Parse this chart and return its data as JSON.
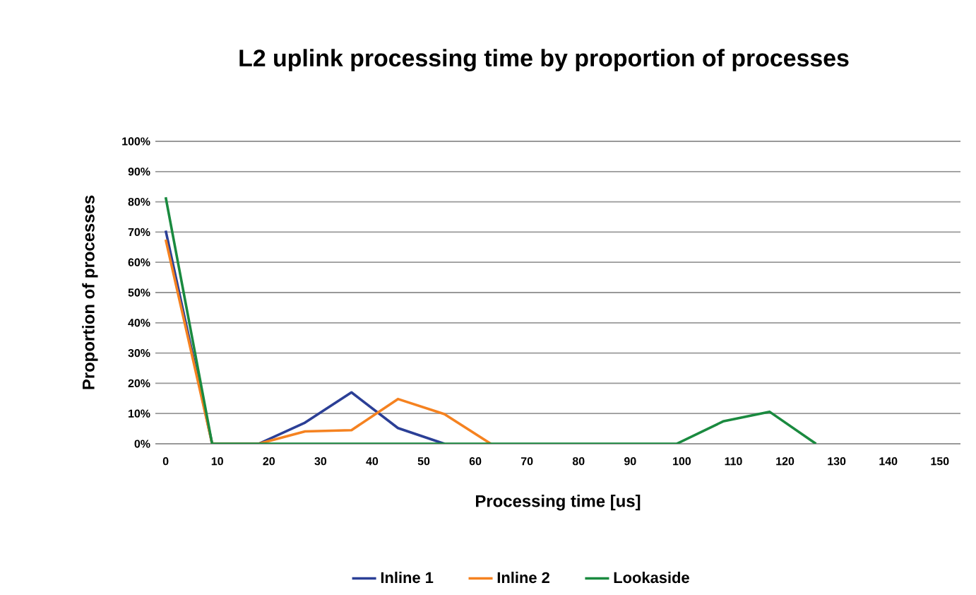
{
  "chart_data": {
    "type": "line",
    "title": "L2 uplink processing time by proportion of processes",
    "xlabel": "Processing time [us]",
    "ylabel": "Proportion of processes",
    "xlim": [
      -2,
      154
    ],
    "xticks": [
      0,
      10,
      20,
      30,
      40,
      50,
      60,
      70,
      80,
      90,
      100,
      110,
      120,
      130,
      140,
      150
    ],
    "ylim": [
      0,
      100
    ],
    "yticks": [
      {
        "value": 0,
        "label": "0%"
      },
      {
        "value": 10,
        "label": "10%"
      },
      {
        "value": 20,
        "label": "20%"
      },
      {
        "value": 30,
        "label": "30%"
      },
      {
        "value": 40,
        "label": "40%"
      },
      {
        "value": 50,
        "label": "50%"
      },
      {
        "value": 60,
        "label": "60%"
      },
      {
        "value": 70,
        "label": "70%"
      },
      {
        "value": 80,
        "label": "80%"
      },
      {
        "value": 90,
        "label": "90%"
      },
      {
        "value": 100,
        "label": "100%"
      }
    ],
    "grid": "y",
    "legend": "bottom",
    "marker": "none",
    "line_style": "solid",
    "series": [
      {
        "name": "Inline 1",
        "color": "#2b3f96",
        "x": [
          0,
          9,
          18,
          27,
          36,
          45,
          54
        ],
        "values": [
          70.5,
          0,
          0,
          7,
          17,
          5.2,
          0
        ]
      },
      {
        "name": "Inline 2",
        "color": "#f58220",
        "x": [
          0,
          9,
          18,
          27,
          36,
          45,
          54,
          63
        ],
        "values": [
          67.5,
          0,
          0,
          4.1,
          4.5,
          14.8,
          9.8,
          0
        ]
      },
      {
        "name": "Lookaside",
        "color": "#1a8a3f",
        "x": [
          0,
          9,
          18,
          27,
          36,
          45,
          54,
          63,
          72,
          81,
          90,
          99,
          108,
          117,
          126
        ],
        "values": [
          81.5,
          0,
          0,
          0,
          0,
          0,
          0,
          0,
          0,
          0,
          0,
          0,
          7.4,
          10.6,
          0
        ]
      }
    ]
  }
}
